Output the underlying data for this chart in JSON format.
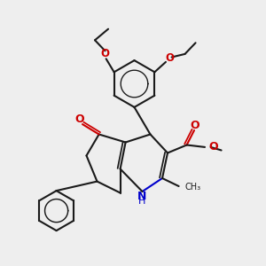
{
  "bg_color": "#eeeeee",
  "bond_color": "#1a1a1a",
  "oxygen_color": "#cc0000",
  "nitrogen_color": "#0000cc",
  "line_width": 1.5,
  "figsize": [
    3.0,
    3.0
  ],
  "dpi": 100,
  "xlim": [
    0,
    10
  ],
  "ylim": [
    0,
    10
  ]
}
